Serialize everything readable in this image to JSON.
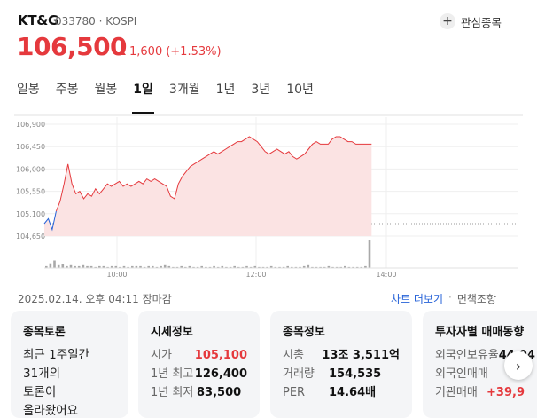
{
  "stock": {
    "name": "KT&G",
    "code": "033780",
    "market": "KOSPI",
    "meta_sep": "·",
    "price": "106,500",
    "change": "1,600",
    "change_pct": "(+1.53%)",
    "watch_label": "관심종목"
  },
  "periods": [
    "일봉",
    "주봉",
    "월봉",
    "1일",
    "3개월",
    "1년",
    "3년",
    "10년"
  ],
  "active_period": "1일",
  "colors": {
    "up": "#e5393d",
    "down": "#2763d8",
    "fill": "#fbe3e3"
  },
  "chart_data": {
    "type": "area",
    "title": "",
    "xlabel": "",
    "ylabel": "",
    "ylim": [
      104650,
      106900
    ],
    "y_ticks": [
      "106,900",
      "106,450",
      "106,000",
      "105,550",
      "105,100",
      "104,650"
    ],
    "x_ticks": [
      "10:00",
      "12:00",
      "14:00"
    ],
    "baseline": 104900,
    "series": [
      {
        "values": [
          [
            0,
            104900
          ],
          [
            4,
            105000
          ],
          [
            8,
            104780
          ],
          [
            12,
            105150
          ],
          [
            16,
            105350
          ],
          [
            20,
            105700
          ],
          [
            24,
            106100
          ],
          [
            28,
            105700
          ],
          [
            32,
            105500
          ],
          [
            36,
            105550
          ],
          [
            40,
            105400
          ],
          [
            44,
            105500
          ],
          [
            48,
            105450
          ],
          [
            52,
            105600
          ],
          [
            56,
            105500
          ],
          [
            60,
            105600
          ],
          [
            64,
            105700
          ],
          [
            68,
            105650
          ],
          [
            72,
            105700
          ],
          [
            76,
            105750
          ],
          [
            80,
            105650
          ],
          [
            84,
            105700
          ],
          [
            88,
            105650
          ],
          [
            92,
            105700
          ],
          [
            96,
            105750
          ],
          [
            100,
            105700
          ],
          [
            104,
            105800
          ],
          [
            108,
            105750
          ],
          [
            112,
            105800
          ],
          [
            116,
            105750
          ],
          [
            120,
            105700
          ],
          [
            124,
            105650
          ],
          [
            128,
            105450
          ],
          [
            132,
            105400
          ],
          [
            136,
            105700
          ],
          [
            140,
            105850
          ],
          [
            144,
            105950
          ],
          [
            148,
            106050
          ],
          [
            152,
            106100
          ],
          [
            156,
            106150
          ],
          [
            160,
            106200
          ],
          [
            164,
            106250
          ],
          [
            168,
            106300
          ],
          [
            172,
            106350
          ],
          [
            176,
            106300
          ],
          [
            180,
            106350
          ],
          [
            184,
            106400
          ],
          [
            188,
            106450
          ],
          [
            192,
            106500
          ],
          [
            196,
            106550
          ],
          [
            200,
            106550
          ],
          [
            204,
            106600
          ],
          [
            208,
            106650
          ],
          [
            212,
            106600
          ],
          [
            216,
            106550
          ],
          [
            220,
            106450
          ],
          [
            224,
            106350
          ],
          [
            228,
            106300
          ],
          [
            232,
            106350
          ],
          [
            236,
            106400
          ],
          [
            240,
            106350
          ],
          [
            244,
            106300
          ],
          [
            248,
            106350
          ],
          [
            252,
            106250
          ],
          [
            256,
            106200
          ],
          [
            260,
            106250
          ],
          [
            264,
            106300
          ],
          [
            268,
            106400
          ],
          [
            272,
            106500
          ],
          [
            276,
            106550
          ],
          [
            280,
            106500
          ],
          [
            284,
            106500
          ],
          [
            288,
            106500
          ],
          [
            292,
            106600
          ],
          [
            296,
            106650
          ],
          [
            300,
            106650
          ],
          [
            304,
            106600
          ],
          [
            308,
            106550
          ],
          [
            312,
            106550
          ],
          [
            316,
            106500
          ],
          [
            320,
            106500
          ],
          [
            324,
            106500
          ],
          [
            328,
            106500
          ],
          [
            332,
            106500
          ]
        ]
      }
    ],
    "volumes": [
      2,
      5,
      8,
      3,
      4,
      2,
      3,
      2,
      2,
      3,
      2,
      2,
      1,
      2,
      2,
      1,
      2,
      2,
      1,
      2,
      1,
      2,
      2,
      2,
      1,
      2,
      2,
      1,
      2,
      3,
      2,
      1,
      1,
      2,
      1,
      2,
      1,
      1,
      2,
      1,
      1,
      2,
      1,
      2,
      1,
      1,
      2,
      1,
      1,
      2,
      1,
      2,
      1,
      1,
      1,
      2,
      1,
      1,
      1,
      2,
      1,
      1,
      1,
      2,
      3,
      1,
      1,
      1,
      1,
      2,
      1,
      1,
      1,
      2,
      1,
      1,
      1,
      1,
      2,
      30
    ]
  },
  "status": {
    "date": "2025.02.14. 오후 04:11 장마감",
    "chart_more": "차트 더보기",
    "sep": "·",
    "disclaimer": "면책조항"
  },
  "cards": {
    "discussion": {
      "title": "종목토론",
      "line1": "최근 1주일간",
      "line2": "31개의",
      "line3": "토론이",
      "line4": "올라왔어요"
    },
    "market": {
      "title": "시세정보",
      "open_label": "시가",
      "open_value": "105,100",
      "high_label": "1년 최고",
      "high_value": "126,400",
      "low_label": "1년 최저",
      "low_value": "83,500"
    },
    "info": {
      "title": "종목정보",
      "cap_label": "시총",
      "cap_value": "13조 3,511억",
      "vol_label": "거래량",
      "vol_value": "154,535",
      "per_label": "PER",
      "per_value": "14.64배"
    },
    "investor": {
      "title": "투자자별 매매동향",
      "foreign_ratio_label": "외국인보유율",
      "foreign_ratio_value": "44.04",
      "foreign_net_label": "외국인매매",
      "foreign_net_value": "-",
      "inst_label": "기관매매",
      "inst_value": "+39,9"
    }
  }
}
